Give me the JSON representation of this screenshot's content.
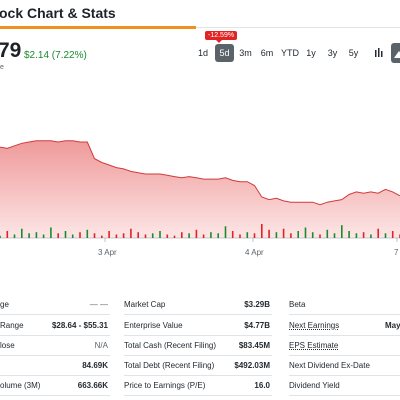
{
  "header": {
    "title": "ock Chart & Stats"
  },
  "quote": {
    "price": "79",
    "change": "$2.14 (7.22%)",
    "sub": "e"
  },
  "tooltip": "-12.59%",
  "ranges": [
    {
      "label": "1d",
      "active": false
    },
    {
      "label": "5d",
      "active": true
    },
    {
      "label": "3m",
      "active": false
    },
    {
      "label": "6m",
      "active": false
    },
    {
      "label": "YTD",
      "active": false
    },
    {
      "label": "1y",
      "active": false
    },
    {
      "label": "3y",
      "active": false
    },
    {
      "label": "5y",
      "active": false
    }
  ],
  "tools": [
    "chart-type-icon",
    "mountain-chart-icon"
  ],
  "colors": {
    "accent": "#f0901f",
    "positive": "#1a8a2f",
    "negative": "#e02424",
    "area_fill": "#f4b6b6",
    "area_line": "#d23a3a"
  },
  "chart": {
    "x_labels": [
      "3 Apr",
      "4 Apr",
      "7"
    ]
  },
  "chart_data": {
    "type": "area",
    "series": [
      {
        "values": [
          71,
          70,
          72,
          74,
          75,
          76,
          76,
          76,
          75,
          76,
          76,
          75,
          75,
          62,
          59,
          57,
          55,
          54,
          52,
          51,
          50,
          50,
          50,
          49,
          48,
          47,
          48,
          47,
          46,
          46,
          46,
          47,
          45,
          44,
          44,
          41,
          32,
          30,
          31,
          29,
          28,
          28,
          28,
          28,
          26,
          28,
          29,
          30,
          34,
          36,
          35,
          36,
          35,
          38,
          36,
          33
        ]
      }
    ],
    "volume": [
      2,
      6,
      3,
      8,
      4,
      5,
      3,
      9,
      4,
      6,
      3,
      5,
      7,
      4,
      2,
      6,
      3,
      4,
      8,
      5,
      3,
      4,
      6,
      3,
      2,
      5,
      4,
      7,
      3,
      5,
      4,
      10,
      6,
      3,
      5,
      4,
      12,
      7,
      5,
      8,
      4,
      6,
      9,
      5,
      3,
      7,
      4,
      11,
      6,
      4,
      5,
      3,
      8,
      4,
      6,
      3
    ]
  },
  "stats": {
    "col1": [
      {
        "label": "ge",
        "value": "— —"
      },
      {
        "label": "Range",
        "value": "$28.64 - $55.31"
      },
      {
        "label": "lose",
        "value": "N/A"
      },
      {
        "label": "",
        "value": "84.69K"
      },
      {
        "label": "olume (3M)",
        "value": "663.66K"
      }
    ],
    "col2": [
      {
        "label": "Market Cap",
        "value": "$3.29B"
      },
      {
        "label": "Enterprise Value",
        "value": "$4.77B"
      },
      {
        "label": "Total Cash (Recent Filing)",
        "value": "$83.45M"
      },
      {
        "label": "Total Debt (Recent Filing)",
        "value": "$492.03M"
      },
      {
        "label": "Price to Earnings (P/E)",
        "value": "16.0"
      }
    ],
    "col3": [
      {
        "label": "Beta",
        "value": ""
      },
      {
        "label": "Next Earnings",
        "value": "May"
      },
      {
        "label": "EPS Estimate",
        "value": ""
      },
      {
        "label": "Next Dividend Ex-Date",
        "value": ""
      },
      {
        "label": "Dividend Yield",
        "value": ""
      }
    ]
  }
}
